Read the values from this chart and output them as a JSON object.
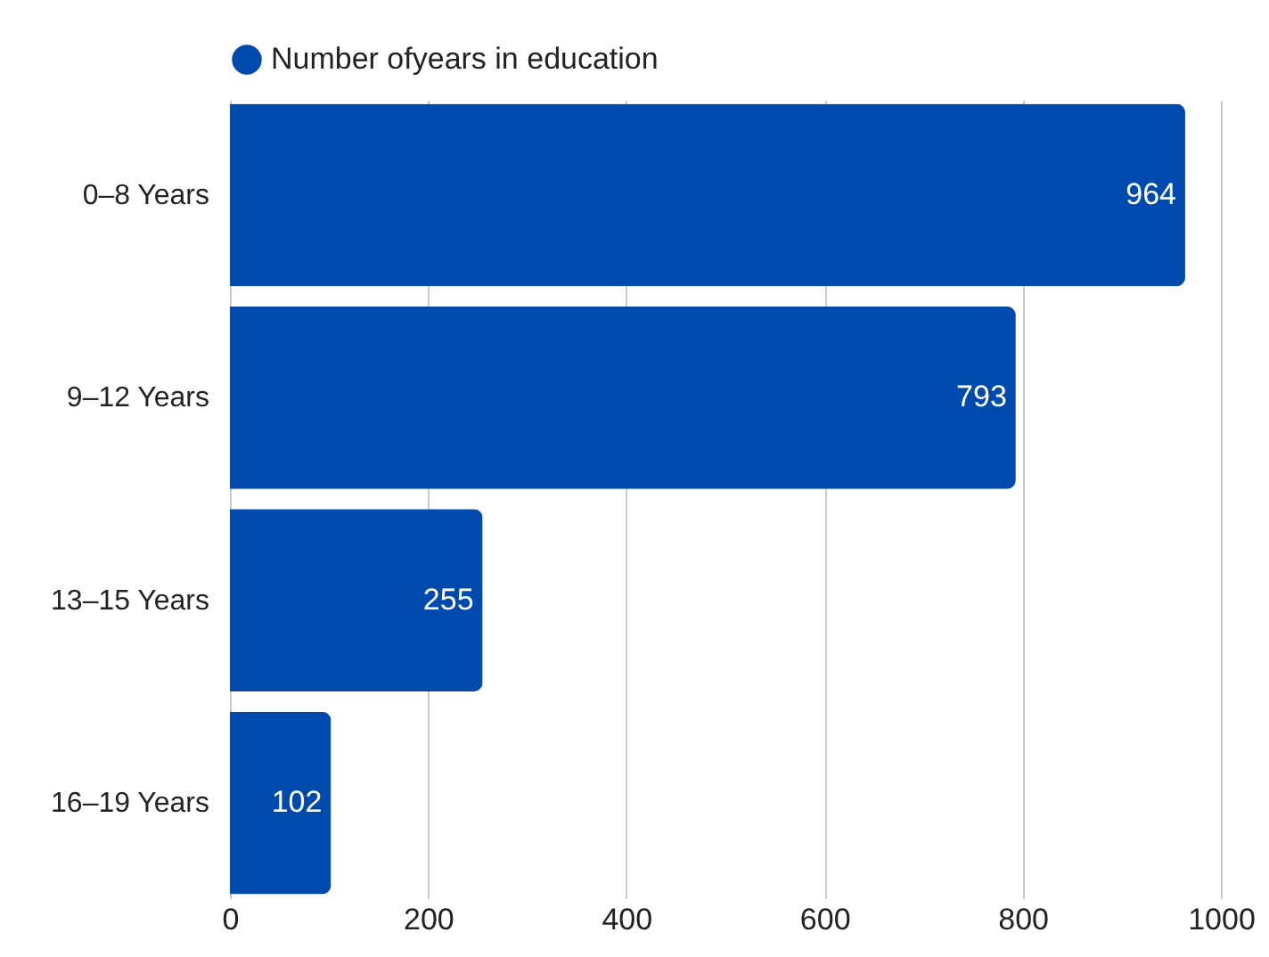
{
  "chart_data": {
    "type": "bar",
    "orientation": "horizontal",
    "categories": [
      "0–8 Years",
      "9–12 Years",
      "13–15 Years",
      "16–19 Years"
    ],
    "series": [
      {
        "name": "Number ofyears in education",
        "color": "#004aad",
        "values": [
          964,
          793,
          255,
          102
        ]
      }
    ],
    "xlim": [
      0,
      1000
    ],
    "xticks": [
      0,
      200,
      400,
      600,
      800,
      1000
    ],
    "grid": "x",
    "data_labels": true,
    "legend": "top"
  }
}
